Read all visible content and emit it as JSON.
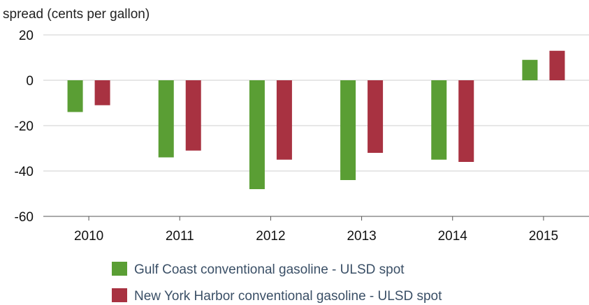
{
  "chart_data": {
    "type": "bar",
    "ylabel": "spread (cents per gallon)",
    "categories": [
      "2010",
      "2011",
      "2012",
      "2013",
      "2014",
      "2015"
    ],
    "y_ticks": [
      20,
      0,
      -20,
      -40,
      -60
    ],
    "ylim": [
      -60,
      20
    ],
    "grid": true,
    "legend_position": "bottom",
    "series": [
      {
        "name": "Gulf Coast conventional gasoline - ULSD spot",
        "color": "#5a9e34",
        "values": [
          -14,
          -34,
          -48,
          -44,
          -35,
          9
        ]
      },
      {
        "name": "New York Harbor conventional gasoline - ULSD spot",
        "color": "#a83241",
        "values": [
          -11,
          -31,
          -35,
          -32,
          -36,
          13
        ]
      }
    ]
  }
}
